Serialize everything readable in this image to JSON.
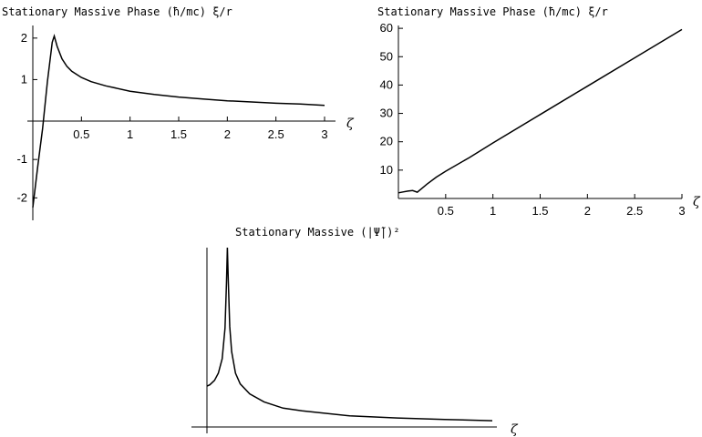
{
  "chart_data": [
    {
      "id": "c1",
      "type": "line",
      "title": "Stationary Massive Phase (ħ/mc) ξ/r",
      "xlabel": "ζ",
      "ylabel": "",
      "xlim": [
        0,
        3
      ],
      "ylim": [
        -2.3,
        2.15
      ],
      "xticks": [
        0.5,
        1,
        1.5,
        2,
        2.5,
        3
      ],
      "xtick_labels": [
        "0.5",
        "1",
        "1.5",
        "2",
        "2.5",
        "3"
      ],
      "yticks": [
        -2,
        -1,
        1,
        2
      ],
      "ytick_labels": [
        "-2",
        "-1",
        "1",
        "2"
      ],
      "series": [
        {
          "x": [
            0.0,
            0.05,
            0.1,
            0.15,
            0.2,
            0.22,
            0.25,
            0.3,
            0.35,
            0.4,
            0.5,
            0.6,
            0.75,
            1.0,
            1.25,
            1.5,
            1.75,
            2.0,
            2.25,
            2.5,
            2.75,
            3.0
          ],
          "y": [
            -2.25,
            -1.2,
            -0.2,
            0.95,
            1.9,
            2.05,
            1.8,
            1.5,
            1.32,
            1.2,
            1.05,
            0.95,
            0.85,
            0.72,
            0.64,
            0.58,
            0.53,
            0.49,
            0.46,
            0.43,
            0.41,
            0.38
          ]
        }
      ]
    },
    {
      "id": "c2",
      "type": "line",
      "title": "Stationary Massive Phase (ħ/mc) ξ/r",
      "xlabel": "ζ",
      "ylabel": "",
      "xlim": [
        0,
        3
      ],
      "ylim": [
        0,
        61
      ],
      "xticks": [
        0.5,
        1,
        1.5,
        2,
        2.5,
        3
      ],
      "xtick_labels": [
        "0.5",
        "1",
        "1.5",
        "2",
        "2.5",
        "3"
      ],
      "yticks": [
        10,
        20,
        30,
        40,
        50,
        60
      ],
      "ytick_labels": [
        "10",
        "20",
        "30",
        "40",
        "50",
        "60"
      ],
      "series": [
        {
          "x": [
            0.0,
            0.05,
            0.1,
            0.15,
            0.2,
            0.25,
            0.3,
            0.4,
            0.5,
            0.75,
            1.0,
            1.5,
            2.0,
            2.5,
            3.0
          ],
          "y": [
            2.0,
            2.3,
            2.6,
            2.8,
            2.2,
            3.6,
            5.0,
            7.5,
            9.6,
            14.4,
            19.6,
            29.6,
            39.6,
            49.6,
            59.6
          ]
        }
      ]
    },
    {
      "id": "c3",
      "type": "line",
      "title": "Stationary Massive (|Ψ̃|)²",
      "xlabel": "ζ",
      "ylabel": "",
      "xlim": [
        0,
        3
      ],
      "ylim": [
        0,
        1
      ],
      "xticks": [],
      "yticks": [],
      "series": [
        {
          "x": [
            0.0,
            0.03,
            0.08,
            0.12,
            0.16,
            0.19,
            0.205,
            0.215,
            0.225,
            0.24,
            0.26,
            0.3,
            0.35,
            0.45,
            0.6,
            0.8,
            1.0,
            1.5,
            2.0,
            2.5,
            3.0
          ],
          "y": [
            0.228,
            0.235,
            0.26,
            0.3,
            0.38,
            0.55,
            0.8,
            1.0,
            0.8,
            0.56,
            0.42,
            0.3,
            0.24,
            0.185,
            0.14,
            0.105,
            0.09,
            0.062,
            0.05,
            0.042,
            0.035
          ]
        }
      ]
    }
  ]
}
